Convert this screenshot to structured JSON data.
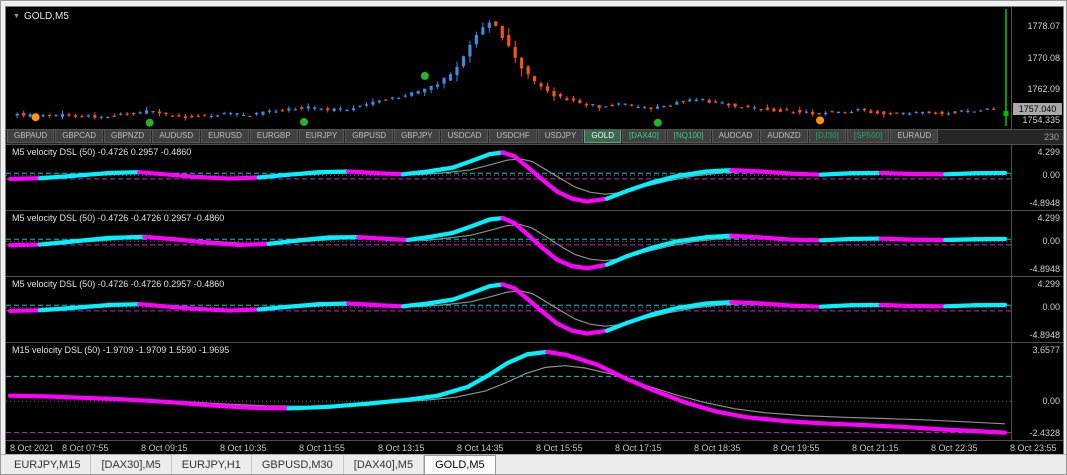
{
  "window": {
    "title": "GOLD,M5"
  },
  "misc": {
    "axis_note": "230"
  },
  "symbol_tabs": {
    "items": [
      {
        "label": "GBPAUD",
        "style": "default"
      },
      {
        "label": "GBPCAD",
        "style": "default"
      },
      {
        "label": "GBPNZD",
        "style": "default"
      },
      {
        "label": "AUDUSD",
        "style": "default"
      },
      {
        "label": "EURUSD",
        "style": "default"
      },
      {
        "label": "EURGBP",
        "style": "default"
      },
      {
        "label": "EURJPY",
        "style": "default"
      },
      {
        "label": "GBPUSD",
        "style": "default"
      },
      {
        "label": "GBPJPY",
        "style": "default"
      },
      {
        "label": "USDCAD",
        "style": "default"
      },
      {
        "label": "USDCHF",
        "style": "default"
      },
      {
        "label": "USDJPY",
        "style": "default"
      },
      {
        "label": "GOLD",
        "style": "selected"
      },
      {
        "label": "[DAX40]",
        "style": "green"
      },
      {
        "label": "[NQ100]",
        "style": "green"
      },
      {
        "label": "AUDCAD",
        "style": "default"
      },
      {
        "label": "AUDNZD",
        "style": "default"
      },
      {
        "label": "[DJ30]",
        "style": "green-dim"
      },
      {
        "label": "[SP500]",
        "style": "green-dim"
      },
      {
        "label": "EURAUD",
        "style": "default"
      }
    ]
  },
  "time_axis": {
    "labels": [
      "8 Oct 2021",
      "8 Oct 07:55",
      "8 Oct 09:15",
      "8 Oct 10:35",
      "8 Oct 11:55",
      "8 Oct 13:15",
      "8 Oct 14:35",
      "8 Oct 15:55",
      "8 Oct 17:15",
      "8 Oct 18:35",
      "8 Oct 19:55",
      "8 Oct 21:15",
      "8 Oct 22:35",
      "8 Oct 23:55"
    ]
  },
  "bottom_tabs": {
    "items": [
      {
        "label": "EURJPY,M15",
        "active": false
      },
      {
        "label": "[DAX30],M5",
        "active": false
      },
      {
        "label": "EURJPY,H1",
        "active": false
      },
      {
        "label": "GBPUSD,M30",
        "active": false
      },
      {
        "label": "[DAX40],M5",
        "active": false
      },
      {
        "label": "GOLD,M5",
        "active": true
      }
    ]
  },
  "chart_data": [
    {
      "id": "main",
      "type": "candlestick",
      "title": "GOLD,M5",
      "ylim": [
        1752,
        1783
      ],
      "num_candles": 152,
      "up_color": "#3f87e0",
      "down_color": "#f4511e",
      "vline_color": "#00c000",
      "price_path": [
        [
          0,
          1755.8
        ],
        [
          0.03,
          1755.2
        ],
        [
          0.06,
          1755.6
        ],
        [
          0.09,
          1755.0
        ],
        [
          0.12,
          1755.8
        ],
        [
          0.14,
          1756.6
        ],
        [
          0.16,
          1755.6
        ],
        [
          0.18,
          1755.0
        ],
        [
          0.2,
          1755.6
        ],
        [
          0.22,
          1756.0
        ],
        [
          0.24,
          1755.4
        ],
        [
          0.26,
          1756.2
        ],
        [
          0.28,
          1756.8
        ],
        [
          0.3,
          1757.6
        ],
        [
          0.32,
          1756.8
        ],
        [
          0.34,
          1757.0
        ],
        [
          0.36,
          1758.2
        ],
        [
          0.38,
          1759.6
        ],
        [
          0.4,
          1760.4
        ],
        [
          0.42,
          1762.0
        ],
        [
          0.435,
          1763.5
        ],
        [
          0.45,
          1766.5
        ],
        [
          0.46,
          1770.0
        ],
        [
          0.47,
          1774.5
        ],
        [
          0.478,
          1777.5
        ],
        [
          0.486,
          1779.2
        ],
        [
          0.494,
          1777.8
        ],
        [
          0.5,
          1775.5
        ],
        [
          0.51,
          1771.5
        ],
        [
          0.52,
          1767.5
        ],
        [
          0.53,
          1764.5
        ],
        [
          0.545,
          1761.5
        ],
        [
          0.56,
          1759.8
        ],
        [
          0.58,
          1758.6
        ],
        [
          0.6,
          1757.6
        ],
        [
          0.615,
          1758.6
        ],
        [
          0.63,
          1757.8
        ],
        [
          0.65,
          1757.0
        ],
        [
          0.665,
          1757.8
        ],
        [
          0.68,
          1759.0
        ],
        [
          0.7,
          1759.4
        ],
        [
          0.72,
          1758.6
        ],
        [
          0.74,
          1757.8
        ],
        [
          0.76,
          1757.2
        ],
        [
          0.78,
          1756.8
        ],
        [
          0.8,
          1756.4
        ],
        [
          0.82,
          1756.0
        ],
        [
          0.84,
          1756.4
        ],
        [
          0.86,
          1756.8
        ],
        [
          0.88,
          1756.2
        ],
        [
          0.9,
          1755.8
        ],
        [
          0.92,
          1756.2
        ],
        [
          0.94,
          1756.0
        ],
        [
          0.96,
          1756.4
        ],
        [
          0.98,
          1756.8
        ],
        [
          1,
          1757.0
        ]
      ],
      "axis_labels": [
        {
          "text": "1778.07",
          "value": 1778.07
        },
        {
          "text": "1770.08",
          "value": 1770.08
        },
        {
          "text": "1762.09",
          "value": 1762.09
        },
        {
          "text": "1754.335",
          "value": 1754.335
        }
      ],
      "current_price": {
        "text": "1757.040",
        "value": 1757.04
      },
      "dots": [
        {
          "t": 0.022,
          "price": 1755.0,
          "color": "#ff9800"
        },
        {
          "t": 0.138,
          "price": 1753.6,
          "color": "#26b226"
        },
        {
          "t": 0.295,
          "price": 1753.8,
          "color": "#26b226"
        },
        {
          "t": 0.418,
          "price": 1765.5,
          "color": "#26b226"
        },
        {
          "t": 0.655,
          "price": 1753.6,
          "color": "#26b226"
        },
        {
          "t": 0.82,
          "price": 1754.2,
          "color": "#ff9800"
        }
      ]
    },
    {
      "id": "pane1",
      "type": "line-indicator",
      "label": "M5 velocity DSL (50) -0.4726 0.2957 -0.4860",
      "ylim": [
        -4.8948,
        4.299
      ],
      "axis": {
        "top": "4.299",
        "mid": "0.00",
        "bottom": "-4.8948"
      },
      "levels": {
        "upper": 0.2957,
        "lower": -0.486
      },
      "colors": {
        "up": "#00f2ff",
        "down": "#ff00ff",
        "signal": "#8f8f8f"
      },
      "points": [
        [
          0,
          -0.5,
          "m"
        ],
        [
          0.03,
          -0.4,
          "m"
        ],
        [
          0.06,
          -0.1,
          "c"
        ],
        [
          0.1,
          0.35,
          "c"
        ],
        [
          0.13,
          0.45,
          "c"
        ],
        [
          0.16,
          0.1,
          "m"
        ],
        [
          0.19,
          -0.25,
          "m"
        ],
        [
          0.22,
          -0.45,
          "m"
        ],
        [
          0.25,
          -0.3,
          "m"
        ],
        [
          0.28,
          0.1,
          "c"
        ],
        [
          0.31,
          0.45,
          "c"
        ],
        [
          0.34,
          0.55,
          "c"
        ],
        [
          0.37,
          0.3,
          "m"
        ],
        [
          0.395,
          0.15,
          "m"
        ],
        [
          0.42,
          0.55,
          "c"
        ],
        [
          0.445,
          1.1,
          "c"
        ],
        [
          0.465,
          2.1,
          "c"
        ],
        [
          0.482,
          3.0,
          "c"
        ],
        [
          0.495,
          3.25,
          "c"
        ],
        [
          0.507,
          2.7,
          "m"
        ],
        [
          0.52,
          1.2,
          "m"
        ],
        [
          0.535,
          -0.6,
          "m"
        ],
        [
          0.55,
          -2.3,
          "m"
        ],
        [
          0.565,
          -3.3,
          "m"
        ],
        [
          0.58,
          -3.7,
          "m"
        ],
        [
          0.6,
          -3.3,
          "m"
        ],
        [
          0.62,
          -2.2,
          "c"
        ],
        [
          0.645,
          -1.0,
          "c"
        ],
        [
          0.67,
          -0.1,
          "c"
        ],
        [
          0.7,
          0.55,
          "c"
        ],
        [
          0.725,
          0.75,
          "c"
        ],
        [
          0.755,
          0.55,
          "m"
        ],
        [
          0.785,
          0.25,
          "m"
        ],
        [
          0.815,
          0.1,
          "m"
        ],
        [
          0.845,
          0.3,
          "c"
        ],
        [
          0.875,
          0.35,
          "c"
        ],
        [
          0.905,
          0.2,
          "m"
        ],
        [
          0.94,
          0.15,
          "m"
        ],
        [
          0.97,
          0.3,
          "c"
        ],
        [
          1,
          0.35,
          "c"
        ]
      ]
    },
    {
      "id": "pane2",
      "type": "line-indicator",
      "label": "M5 velocity DSL (50) -0.4726 -0.4726 0.2957 -0.4860",
      "ylim": [
        -4.8948,
        4.299
      ],
      "axis": {
        "top": "4.299",
        "mid": "0.00",
        "bottom": "-4.8948"
      },
      "levels": {
        "upper": 0.2957,
        "lower": -0.486
      },
      "colors": {
        "up": "#00f2ff",
        "down": "#ff00ff",
        "signal": "#8f8f8f"
      },
      "points": [
        [
          0,
          -0.55,
          "m"
        ],
        [
          0.03,
          -0.45,
          "m"
        ],
        [
          0.06,
          -0.05,
          "c"
        ],
        [
          0.1,
          0.5,
          "c"
        ],
        [
          0.135,
          0.65,
          "c"
        ],
        [
          0.17,
          0.25,
          "m"
        ],
        [
          0.2,
          -0.2,
          "m"
        ],
        [
          0.23,
          -0.5,
          "m"
        ],
        [
          0.26,
          -0.35,
          "m"
        ],
        [
          0.29,
          0.15,
          "c"
        ],
        [
          0.32,
          0.55,
          "c"
        ],
        [
          0.35,
          0.6,
          "c"
        ],
        [
          0.38,
          0.35,
          "m"
        ],
        [
          0.4,
          0.2,
          "m"
        ],
        [
          0.42,
          0.6,
          "c"
        ],
        [
          0.445,
          1.2,
          "c"
        ],
        [
          0.465,
          2.2,
          "c"
        ],
        [
          0.482,
          3.1,
          "c"
        ],
        [
          0.495,
          3.3,
          "c"
        ],
        [
          0.507,
          2.6,
          "m"
        ],
        [
          0.52,
          1.0,
          "m"
        ],
        [
          0.535,
          -0.9,
          "m"
        ],
        [
          0.55,
          -2.6,
          "m"
        ],
        [
          0.565,
          -3.5,
          "m"
        ],
        [
          0.58,
          -3.8,
          "m"
        ],
        [
          0.6,
          -3.3,
          "m"
        ],
        [
          0.62,
          -2.1,
          "c"
        ],
        [
          0.645,
          -0.9,
          "c"
        ],
        [
          0.67,
          0.0,
          "c"
        ],
        [
          0.7,
          0.6,
          "c"
        ],
        [
          0.725,
          0.8,
          "c"
        ],
        [
          0.755,
          0.55,
          "m"
        ],
        [
          0.785,
          0.25,
          "m"
        ],
        [
          0.815,
          0.15,
          "m"
        ],
        [
          0.845,
          0.35,
          "c"
        ],
        [
          0.875,
          0.4,
          "c"
        ],
        [
          0.905,
          0.25,
          "m"
        ],
        [
          0.94,
          0.2,
          "m"
        ],
        [
          0.97,
          0.3,
          "c"
        ],
        [
          1,
          0.35,
          "c"
        ]
      ]
    },
    {
      "id": "pane3",
      "type": "line-indicator",
      "label": "M5 velocity DSL (50) -0.4726 -0.4726 0.2957 -0.4860",
      "ylim": [
        -4.8948,
        4.299
      ],
      "axis": {
        "top": "4.299",
        "mid": "0.00",
        "bottom": "-4.8948"
      },
      "levels": {
        "upper": 0.2957,
        "lower": -0.486
      },
      "colors": {
        "up": "#00f2ff",
        "down": "#ff00ff",
        "signal": "#8f8f8f"
      },
      "points": [
        [
          0,
          -0.5,
          "m"
        ],
        [
          0.03,
          -0.4,
          "m"
        ],
        [
          0.06,
          -0.1,
          "c"
        ],
        [
          0.1,
          0.35,
          "c"
        ],
        [
          0.13,
          0.45,
          "c"
        ],
        [
          0.16,
          0.1,
          "m"
        ],
        [
          0.19,
          -0.25,
          "m"
        ],
        [
          0.22,
          -0.45,
          "m"
        ],
        [
          0.25,
          -0.3,
          "m"
        ],
        [
          0.28,
          0.1,
          "c"
        ],
        [
          0.31,
          0.45,
          "c"
        ],
        [
          0.34,
          0.55,
          "c"
        ],
        [
          0.37,
          0.3,
          "m"
        ],
        [
          0.395,
          0.15,
          "m"
        ],
        [
          0.42,
          0.55,
          "c"
        ],
        [
          0.445,
          1.1,
          "c"
        ],
        [
          0.465,
          2.1,
          "c"
        ],
        [
          0.482,
          3.0,
          "c"
        ],
        [
          0.495,
          3.25,
          "c"
        ],
        [
          0.507,
          2.7,
          "m"
        ],
        [
          0.52,
          1.2,
          "m"
        ],
        [
          0.535,
          -0.6,
          "m"
        ],
        [
          0.55,
          -2.3,
          "m"
        ],
        [
          0.565,
          -3.3,
          "m"
        ],
        [
          0.58,
          -3.7,
          "m"
        ],
        [
          0.6,
          -3.3,
          "m"
        ],
        [
          0.62,
          -2.2,
          "c"
        ],
        [
          0.645,
          -1.0,
          "c"
        ],
        [
          0.67,
          -0.1,
          "c"
        ],
        [
          0.7,
          0.55,
          "c"
        ],
        [
          0.725,
          0.75,
          "c"
        ],
        [
          0.755,
          0.55,
          "m"
        ],
        [
          0.785,
          0.25,
          "m"
        ],
        [
          0.815,
          0.1,
          "m"
        ],
        [
          0.845,
          0.3,
          "c"
        ],
        [
          0.875,
          0.35,
          "c"
        ],
        [
          0.905,
          0.2,
          "m"
        ],
        [
          0.94,
          0.15,
          "m"
        ],
        [
          0.97,
          0.3,
          "c"
        ],
        [
          1,
          0.35,
          "c"
        ]
      ]
    },
    {
      "id": "pane4",
      "type": "line-indicator",
      "label": "M15 velocity DSL (50) -1.9709 -1.9709 1.5590 -1.9695",
      "ylim": [
        -2.4328,
        3.6577
      ],
      "axis": {
        "top": "3.6577",
        "mid": "0.00",
        "bottom": "-2.4328"
      },
      "levels": {
        "upper": 1.559,
        "lower": -1.9695
      },
      "colors": {
        "up": "#00f2ff",
        "down": "#ff00ff",
        "signal": "#8f8f8f"
      },
      "points": [
        [
          0,
          0.35,
          "c"
        ],
        [
          0.04,
          0.3,
          "m"
        ],
        [
          0.08,
          0.2,
          "m"
        ],
        [
          0.12,
          0.1,
          "m"
        ],
        [
          0.16,
          -0.05,
          "m"
        ],
        [
          0.2,
          -0.25,
          "m"
        ],
        [
          0.24,
          -0.4,
          "m"
        ],
        [
          0.28,
          -0.45,
          "m"
        ],
        [
          0.32,
          -0.35,
          "c"
        ],
        [
          0.36,
          -0.15,
          "c"
        ],
        [
          0.4,
          0.1,
          "c"
        ],
        [
          0.43,
          0.35,
          "c"
        ],
        [
          0.46,
          0.9,
          "c"
        ],
        [
          0.48,
          1.6,
          "c"
        ],
        [
          0.5,
          2.4,
          "c"
        ],
        [
          0.52,
          2.95,
          "c"
        ],
        [
          0.54,
          3.1,
          "c"
        ],
        [
          0.56,
          2.9,
          "m"
        ],
        [
          0.59,
          2.3,
          "m"
        ],
        [
          0.62,
          1.4,
          "m"
        ],
        [
          0.65,
          0.6,
          "m"
        ],
        [
          0.68,
          -0.1,
          "m"
        ],
        [
          0.71,
          -0.65,
          "m"
        ],
        [
          0.74,
          -1.0,
          "m"
        ],
        [
          0.78,
          -1.25,
          "m"
        ],
        [
          0.82,
          -1.4,
          "m"
        ],
        [
          0.86,
          -1.5,
          "m"
        ],
        [
          0.9,
          -1.62,
          "m"
        ],
        [
          0.94,
          -1.78,
          "m"
        ],
        [
          1,
          -1.97,
          "m"
        ]
      ]
    }
  ]
}
